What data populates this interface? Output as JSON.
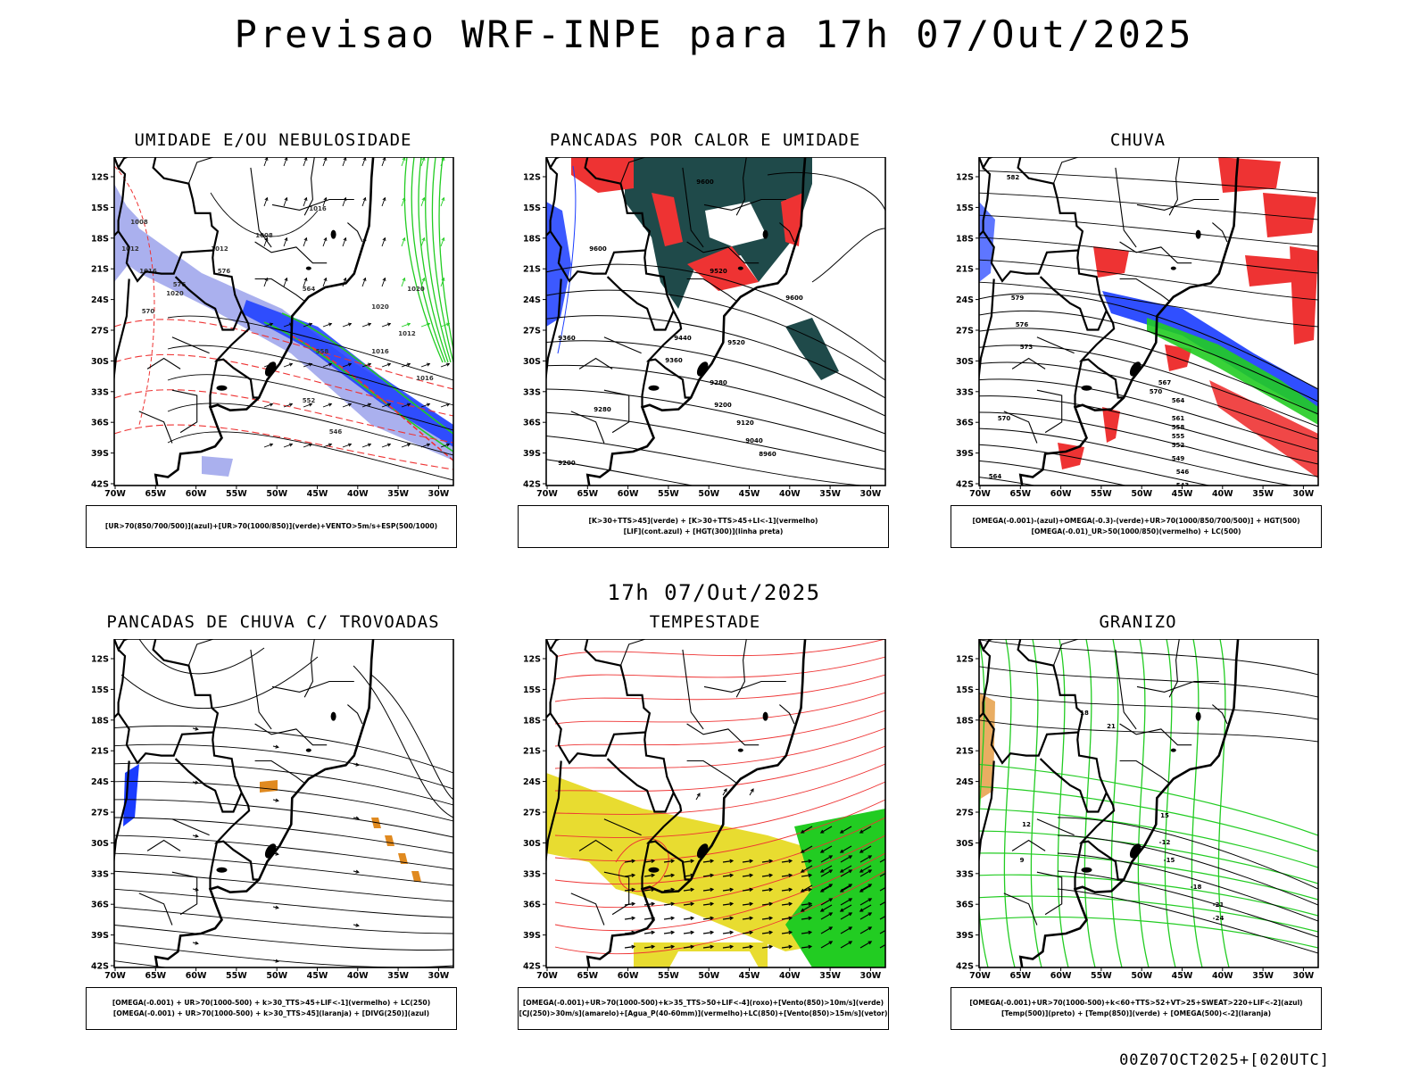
{
  "page": {
    "title": "Previsao WRF-INPE  para 17h 07/Out/2025",
    "subtitle": "17h 07/Out/2025",
    "footer": "00Z07OCT2025+[020UTC]"
  },
  "axes": {
    "lat_labels": [
      "12S",
      "15S",
      "18S",
      "21S",
      "24S",
      "27S",
      "30S",
      "33S",
      "36S",
      "39S",
      "42S"
    ],
    "lon_labels": [
      "70W",
      "65W",
      "60W",
      "55W",
      "50W",
      "45W",
      "40W",
      "35W",
      "30W"
    ]
  },
  "colors": {
    "green": "#22cc22",
    "blue": "#1a3cff",
    "red": "#ee3333",
    "lavender": "#aab0ee",
    "yellow": "#e8dc30",
    "darkteal": "#1f4a4a",
    "orange": "#e08a20"
  },
  "panels": [
    {
      "id": "umidade",
      "title": "UMIDADE E/OU NEBULOSIDADE",
      "legend": [
        "[UR>70(850/700/500)](azul)+[UR>70(1000/850)](verde)+VENTO>5m/s+ESP(500/1000)"
      ],
      "contour_labels": [
        "1008",
        "1012",
        "1016",
        "1020",
        "1012",
        "1008",
        "1016",
        "1020",
        "1016",
        "1020",
        "1012",
        "1016",
        "570",
        "576",
        "564",
        "558",
        "552",
        "546",
        "576"
      ]
    },
    {
      "id": "pancadas-calor",
      "title": "PANCADAS POR CALOR E UMIDADE",
      "legend": [
        "[K>30+TTS>45](verde) + [K>30+TTS>45+LI<-1](vermelho)",
        "[LIF](cont.azul) + [HGT(300)](linha preta)"
      ],
      "contour_labels": [
        "9600",
        "9520",
        "9440",
        "9360",
        "9280",
        "9200",
        "9120",
        "9040",
        "8960",
        "9600",
        "9360",
        "9280",
        "9200",
        "9600",
        "9520"
      ]
    },
    {
      "id": "chuva",
      "title": "CHUVA",
      "legend": [
        "[OMEGA(-0.001)-(azul)+OMEGA(-0.3)-(verde)+UR>70(1000/850/700/500)] + HGT(500)",
        "[OMEGA(-0.01)_UR>50(1000/850)(vermelho) + LC(500)"
      ],
      "contour_labels": [
        "582",
        "576",
        "579",
        "573",
        "570",
        "567",
        "564",
        "561",
        "558",
        "555",
        "552",
        "549",
        "546",
        "543",
        "570",
        "564"
      ]
    },
    {
      "id": "pancadas-trovoadas",
      "title": "PANCADAS DE CHUVA C/ TROVOADAS",
      "legend": [
        "[OMEGA(-0.001) + UR>70(1000-500) + k>30_TTS>45+LIF<-1](vermelho) + LC(250)",
        "[OMEGA(-0.001) + UR>70(1000-500) + k>30_TTS>45](laranja) + [DIVG(250)](azul)"
      ],
      "contour_labels": []
    },
    {
      "id": "tempestade",
      "title": "TEMPESTADE",
      "legend": [
        "[OMEGA(-0.001)+UR>70(1000-500)+k>35_TTS>50+LIF<-4](roxo)+[Vento(850)>10m/s](verde)",
        "[CJ(250)>30m/s](amarelo)+[Agua_P(40-60mm)](vermelho)+LC(850)+[Vento(850)>15m/s](vetor)"
      ],
      "contour_labels": []
    },
    {
      "id": "granizo",
      "title": "GRANIZO",
      "legend": [
        "[OMEGA(-0.001)+UR>70(1000-500)+k<60+TTS>52+VT>25+SWEAT>220+LIF<-2](azul)",
        "[Temp(500)](preto) + [Temp(850)](verde) + [OMEGA(500)<-2](laranja)"
      ],
      "contour_labels": [
        "-12",
        "-15",
        "-18",
        "-21",
        "-24",
        "18",
        "21",
        "15",
        "12",
        "9"
      ]
    }
  ]
}
